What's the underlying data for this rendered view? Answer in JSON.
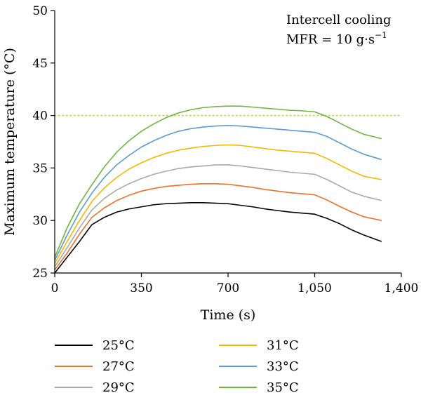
{
  "chart_data": {
    "type": "line",
    "xlabel": "Time (s)",
    "ylabel": "Maximum temperature (°C)",
    "xlim": [
      0,
      1400
    ],
    "ylim": [
      25,
      50
    ],
    "xticks": [
      0,
      350,
      700,
      1050,
      1400
    ],
    "xtick_labels": [
      "0",
      "350",
      "700",
      "1,050",
      "1,400"
    ],
    "yticks": [
      25,
      30,
      35,
      40,
      45,
      50
    ],
    "ytick_labels": [
      "25",
      "30",
      "35",
      "40",
      "45",
      "50"
    ],
    "annotation": {
      "line1": "Intercell cooling",
      "line2": "MFR = 10 g·s",
      "line2_sup": "−1"
    },
    "reference_line": {
      "y": 40,
      "color": "#b5cc5a",
      "style": "dotted"
    },
    "grid": false,
    "legend_position": "bottom",
    "series": [
      {
        "name": "25°C",
        "color": "#000000",
        "x": [
          0,
          50,
          100,
          150,
          200,
          250,
          300,
          350,
          400,
          450,
          500,
          550,
          600,
          650,
          700,
          750,
          800,
          850,
          900,
          950,
          1000,
          1050,
          1100,
          1150,
          1200,
          1250,
          1320
        ],
        "y": [
          25.0,
          26.5,
          28.0,
          29.6,
          30.3,
          30.8,
          31.1,
          31.3,
          31.5,
          31.6,
          31.65,
          31.7,
          31.7,
          31.65,
          31.6,
          31.45,
          31.3,
          31.1,
          30.95,
          30.8,
          30.7,
          30.6,
          30.2,
          29.7,
          29.1,
          28.6,
          28.0
        ]
      },
      {
        "name": "27°C",
        "color": "#e8742c",
        "x": [
          0,
          50,
          100,
          150,
          200,
          250,
          300,
          350,
          400,
          450,
          500,
          550,
          600,
          650,
          700,
          750,
          800,
          850,
          900,
          950,
          1000,
          1050,
          1100,
          1150,
          1200,
          1250,
          1320
        ],
        "y": [
          25.3,
          26.9,
          28.7,
          30.3,
          31.2,
          31.9,
          32.4,
          32.8,
          33.05,
          33.25,
          33.35,
          33.45,
          33.5,
          33.5,
          33.45,
          33.3,
          33.15,
          32.95,
          32.8,
          32.65,
          32.55,
          32.45,
          31.95,
          31.35,
          30.8,
          30.35,
          30.0
        ]
      },
      {
        "name": "29°C",
        "color": "#a9a9a9",
        "x": [
          0,
          50,
          100,
          150,
          200,
          250,
          300,
          350,
          400,
          450,
          500,
          550,
          600,
          650,
          700,
          750,
          800,
          850,
          900,
          950,
          1000,
          1050,
          1100,
          1150,
          1200,
          1250,
          1320
        ],
        "y": [
          25.6,
          27.4,
          29.3,
          31.0,
          32.1,
          32.9,
          33.5,
          34.0,
          34.4,
          34.7,
          34.95,
          35.1,
          35.2,
          35.3,
          35.3,
          35.2,
          35.05,
          34.9,
          34.75,
          34.6,
          34.5,
          34.4,
          33.9,
          33.3,
          32.7,
          32.3,
          31.9
        ]
      },
      {
        "name": "31°C",
        "color": "#f5b800",
        "x": [
          0,
          50,
          100,
          150,
          200,
          250,
          300,
          350,
          400,
          450,
          500,
          550,
          600,
          650,
          700,
          750,
          800,
          850,
          900,
          950,
          1000,
          1050,
          1100,
          1150,
          1200,
          1250,
          1320
        ],
        "y": [
          25.9,
          28.0,
          30.0,
          31.8,
          33.1,
          34.1,
          34.9,
          35.5,
          36.0,
          36.4,
          36.7,
          36.9,
          37.05,
          37.15,
          37.2,
          37.15,
          37.0,
          36.85,
          36.7,
          36.6,
          36.5,
          36.4,
          35.9,
          35.3,
          34.7,
          34.2,
          33.9
        ]
      },
      {
        "name": "33°C",
        "color": "#5b9bd5",
        "x": [
          0,
          50,
          100,
          150,
          200,
          250,
          300,
          350,
          400,
          450,
          500,
          550,
          600,
          650,
          700,
          750,
          800,
          850,
          900,
          950,
          1000,
          1050,
          1100,
          1150,
          1200,
          1250,
          1320
        ],
        "y": [
          26.2,
          28.6,
          30.8,
          32.6,
          34.1,
          35.3,
          36.2,
          37.0,
          37.6,
          38.1,
          38.5,
          38.75,
          38.9,
          39.0,
          39.05,
          39.0,
          38.9,
          38.8,
          38.7,
          38.6,
          38.5,
          38.4,
          38.0,
          37.4,
          36.8,
          36.3,
          35.8
        ]
      },
      {
        "name": "35°C",
        "color": "#6fb43f",
        "x": [
          0,
          50,
          100,
          150,
          200,
          250,
          300,
          350,
          400,
          450,
          500,
          550,
          600,
          650,
          700,
          750,
          800,
          850,
          900,
          950,
          1000,
          1050,
          1100,
          1150,
          1200,
          1250,
          1320
        ],
        "y": [
          26.5,
          29.3,
          31.6,
          33.4,
          35.1,
          36.5,
          37.6,
          38.5,
          39.2,
          39.8,
          40.25,
          40.55,
          40.75,
          40.85,
          40.9,
          40.9,
          40.8,
          40.7,
          40.6,
          40.5,
          40.45,
          40.35,
          39.9,
          39.3,
          38.7,
          38.2,
          37.8
        ]
      }
    ]
  }
}
